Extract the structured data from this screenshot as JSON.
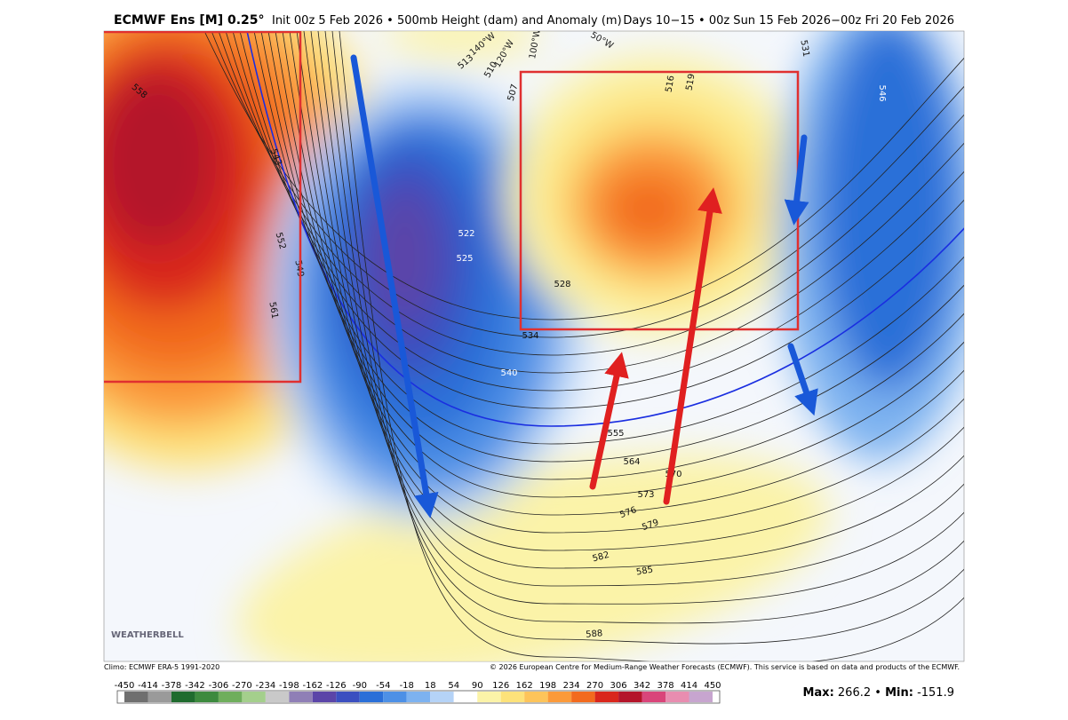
{
  "header": {
    "model": "ECMWF Ens [M] 0.25°",
    "init": "Init 00z 5 Feb 2026 • 500mb Height (dam) and Anomaly (m)",
    "period": "Days 10−15 • 00z Sun 15 Feb 2026−00z Fri 20 Feb 2026"
  },
  "map": {
    "contour_labels": [
      "513",
      "510",
      "507",
      "516",
      "519",
      "531",
      "546",
      "558",
      "543",
      "552",
      "549",
      "561",
      "522",
      "525",
      "528",
      "534",
      "540",
      "555",
      "564",
      "570",
      "573",
      "576",
      "579",
      "582",
      "585",
      "588"
    ],
    "longitude_labels": [
      "140°W",
      "120°W",
      "100°W",
      "50°W"
    ],
    "logo": "WEATHERBELL"
  },
  "footer": {
    "climo": "Climo: ECMWF ERA-5 1991-2020",
    "copyright": "© 2026 European Centre for Medium-Range Weather Forecasts (ECMWF). This service is based on data and products of the ECMWF."
  },
  "colorbar": {
    "ticks": [
      -450,
      -414,
      -378,
      -342,
      -306,
      -270,
      -234,
      -198,
      -162,
      -126,
      -90,
      -54,
      -18,
      18,
      54,
      90,
      126,
      162,
      198,
      234,
      270,
      306,
      342,
      378,
      414,
      450
    ],
    "colors": [
      "#6f6f6f",
      "#9a9a9a",
      "#1f6b2e",
      "#3d8a3e",
      "#6fae5c",
      "#a4cf8c",
      "#c9c9c9",
      "#8f7fb6",
      "#5b45a8",
      "#3b4fc0",
      "#2a6fd8",
      "#4d90e6",
      "#7db2f0",
      "#b5d3f7",
      "#ffffff",
      "#fbf3a8",
      "#fde27a",
      "#fdc45a",
      "#fb9a3a",
      "#f26a1e",
      "#d9261c",
      "#b4142a",
      "#d9457a",
      "#e88db0",
      "#c7a5cf"
    ]
  },
  "stats": {
    "max_label": "Max:",
    "max": 266.2,
    "separator": "•",
    "min_label": "Min:",
    "min": -151.9
  }
}
